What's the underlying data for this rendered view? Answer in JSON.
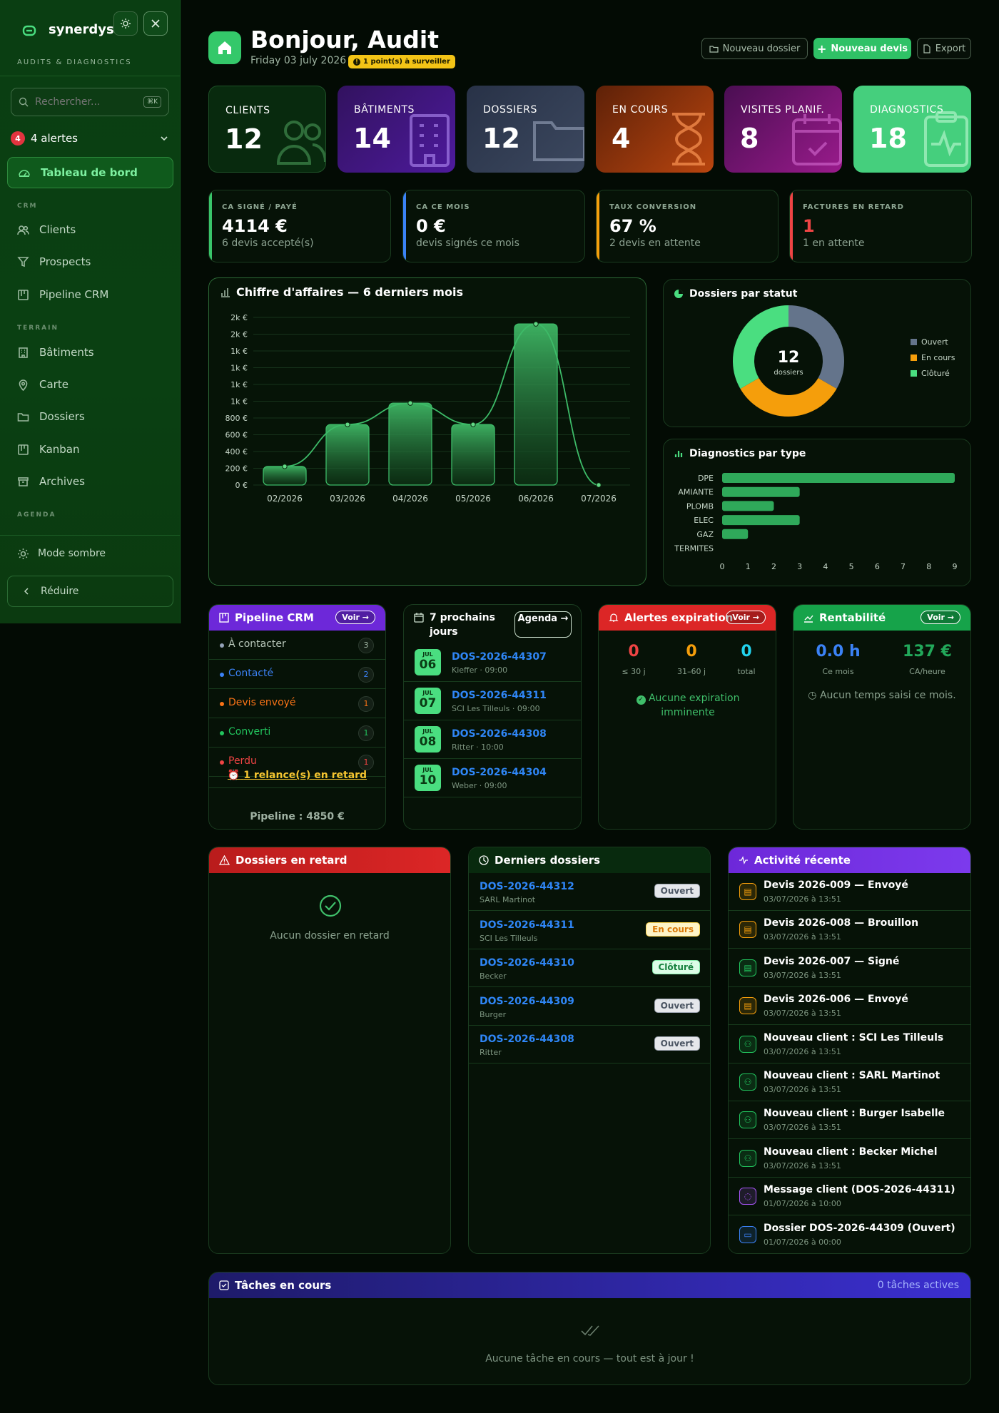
{
  "sidebar": {
    "brand": "synerdys",
    "tagline": "AUDITS & DIAGNOSTICS",
    "search_placeholder": "Rechercher...",
    "search_shortcut": "⌘K",
    "alerts_count": "4",
    "alerts_label": "4 alertes",
    "active_item": "Tableau de bord",
    "sections": {
      "crm": "CRM",
      "terrain": "TERRAIN",
      "agenda": "AGENDA"
    },
    "crm_items": [
      "Clients",
      "Prospects",
      "Pipeline CRM"
    ],
    "terrain_items": [
      "Bâtiments",
      "Carte",
      "Dossiers",
      "Kanban",
      "Archives"
    ],
    "dark_mode": "Mode sombre",
    "collapse": "Réduire"
  },
  "header": {
    "title": "Bonjour, Audit",
    "date": "Friday 03 july 2026",
    "warning": "1 point(s) à surveiller",
    "btn_new_folder": "Nouveau dossier",
    "btn_new_quote": "Nouveau devis",
    "btn_export": "Export"
  },
  "kpis": [
    {
      "label": "CLIENTS",
      "value": "12"
    },
    {
      "label": "BÂTIMENTS",
      "value": "14"
    },
    {
      "label": "DOSSIERS",
      "value": "12"
    },
    {
      "label": "EN COURS",
      "value": "4"
    },
    {
      "label": "VISITES PLANIF.",
      "value": "8"
    },
    {
      "label": "DIAGNOSTICS",
      "value": "18"
    }
  ],
  "stats": [
    {
      "label": "CA SIGNÉ / PAYÉ",
      "value": "4114 €",
      "sub": "6 devis accepté(s)",
      "color": "#39c46a"
    },
    {
      "label": "CA CE MOIS",
      "value": "0 €",
      "sub": "devis signés ce mois",
      "color": "#3b82f6"
    },
    {
      "label": "TAUX CONVERSION",
      "value": "67 %",
      "sub": "2 devis en attente",
      "color": "#f59e0b"
    },
    {
      "label": "FACTURES EN RETARD",
      "value": "1",
      "sub": "1 en attente",
      "color": "#ef4444"
    }
  ],
  "chart_data": [
    {
      "type": "bar",
      "title": "Chiffre d'affaires — 6 derniers mois",
      "categories": [
        "02/2026",
        "03/2026",
        "04/2026",
        "05/2026",
        "06/2026",
        "07/2026"
      ],
      "values": [
        200,
        650,
        880,
        650,
        1730,
        0
      ],
      "y_tick_labels": [
        "0 €",
        "200 €",
        "400 €",
        "600 €",
        "800 €",
        "1k €",
        "1k €",
        "1k €",
        "1k €",
        "2k €",
        "2k €"
      ],
      "ylim": [
        0,
        1800
      ],
      "line_overlay": true
    },
    {
      "type": "pie",
      "title": "Dossiers par statut",
      "center_value": "12",
      "center_label": "dossiers",
      "categories": [
        "Ouvert",
        "En cours",
        "Clôturé"
      ],
      "values": [
        4,
        4,
        4
      ],
      "colors": [
        "#64748b",
        "#f59e0b",
        "#4ade80"
      ]
    },
    {
      "type": "bar",
      "title": "Diagnostics par type",
      "orientation": "horizontal",
      "categories": [
        "DPE",
        "AMIANTE",
        "PLOMB",
        "ELEC",
        "GAZ",
        "TERMITES"
      ],
      "values": [
        9,
        3,
        2,
        3,
        1,
        0
      ],
      "x_ticks": [
        "0",
        "1",
        "2",
        "3",
        "4",
        "5",
        "6",
        "7",
        "8",
        "9"
      ],
      "xlim": [
        0,
        9
      ]
    }
  ],
  "pipeline": {
    "title": "Pipeline CRM",
    "voir": "Voir →",
    "stages": [
      {
        "label": "À contacter",
        "count": "3",
        "color": "#94a3b8"
      },
      {
        "label": "Contacté",
        "count": "2",
        "color": "#3b82f6"
      },
      {
        "label": "Devis envoyé",
        "count": "1",
        "color": "#f97316"
      },
      {
        "label": "Converti",
        "count": "1",
        "color": "#22c55e"
      },
      {
        "label": "Perdu",
        "count": "1",
        "color": "#ef4444"
      }
    ],
    "relance": "1 relance(s) en retard",
    "total": "Pipeline : 4850 €"
  },
  "upcoming": {
    "title": "7 prochains jours",
    "agenda_btn": "Agenda →",
    "items": [
      {
        "month": "JUL",
        "day": "06",
        "ref": "DOS-2026-44307",
        "info": "Kieffer · 09:00"
      },
      {
        "month": "JUL",
        "day": "07",
        "ref": "DOS-2026-44311",
        "info": "SCI Les Tilleuls · 09:00"
      },
      {
        "month": "JUL",
        "day": "08",
        "ref": "DOS-2026-44308",
        "info": "Ritter · 10:00"
      },
      {
        "month": "JUL",
        "day": "10",
        "ref": "DOS-2026-44304",
        "info": "Weber · 09:00"
      }
    ]
  },
  "expiry": {
    "title": "Alertes expiration",
    "voir": "Voir →",
    "cols": [
      {
        "value": "0",
        "label": "≤ 30 j",
        "color": "#ef4444"
      },
      {
        "value": "0",
        "label": "31–60 j",
        "color": "#f59e0b"
      },
      {
        "value": "0",
        "label": "total",
        "color": "#22d3ee"
      }
    ],
    "message": "Aucune expiration imminente"
  },
  "profit": {
    "title": "Rentabilité",
    "voir": "Voir →",
    "hours": "0.0 h",
    "hours_label": "Ce mois",
    "rate": "137 €",
    "rate_label": "CA/heure",
    "message": "Aucun temps saisi ce mois."
  },
  "late": {
    "title": "Dossiers en retard",
    "message": "Aucun dossier en retard"
  },
  "recent_folders": {
    "title": "Derniers dossiers",
    "items": [
      {
        "ref": "DOS-2026-44312",
        "client": "SARL Martinot",
        "status": "Ouvert",
        "kind": "open"
      },
      {
        "ref": "DOS-2026-44311",
        "client": "SCI Les Tilleuls",
        "status": "En cours",
        "kind": "progress"
      },
      {
        "ref": "DOS-2026-44310",
        "client": "Becker",
        "status": "Clôturé",
        "kind": "closed"
      },
      {
        "ref": "DOS-2026-44309",
        "client": "Burger",
        "status": "Ouvert",
        "kind": "open"
      },
      {
        "ref": "DOS-2026-44308",
        "client": "Ritter",
        "status": "Ouvert",
        "kind": "open"
      }
    ]
  },
  "activity": {
    "title": "Activité récente",
    "items": [
      {
        "text": "Devis 2026-009 — Envoyé",
        "date": "03/07/2026 à 13:51",
        "icon": "doc-icon",
        "color": "#f59e0b"
      },
      {
        "text": "Devis 2026-008 — Brouillon",
        "date": "03/07/2026 à 13:51",
        "icon": "doc-icon",
        "color": "#f59e0b"
      },
      {
        "text": "Devis 2026-007 — Signé",
        "date": "03/07/2026 à 13:51",
        "icon": "doc-icon",
        "color": "#22c55e"
      },
      {
        "text": "Devis 2026-006 — Envoyé",
        "date": "03/07/2026 à 13:51",
        "icon": "doc-icon",
        "color": "#f59e0b"
      },
      {
        "text": "Nouveau client : SCI Les Tilleuls",
        "date": "03/07/2026 à 13:51",
        "icon": "user-add-icon",
        "color": "#22c55e"
      },
      {
        "text": "Nouveau client : SARL Martinot",
        "date": "03/07/2026 à 13:51",
        "icon": "user-add-icon",
        "color": "#22c55e"
      },
      {
        "text": "Nouveau client : Burger Isabelle",
        "date": "03/07/2026 à 13:51",
        "icon": "user-add-icon",
        "color": "#22c55e"
      },
      {
        "text": "Nouveau client : Becker Michel",
        "date": "03/07/2026 à 13:51",
        "icon": "user-add-icon",
        "color": "#22c55e"
      },
      {
        "text": "Message client (DOS-2026-44311)",
        "date": "01/07/2026 à 10:00",
        "icon": "message-icon",
        "color": "#a855f7"
      },
      {
        "text": "Dossier DOS-2026-44309 (Ouvert)",
        "date": "01/07/2026 à 00:00",
        "icon": "folder-icon",
        "color": "#3b82f6"
      }
    ]
  },
  "tasks": {
    "title": "Tâches en cours",
    "count": "0 tâches actives",
    "message": "Aucune tâche en cours — tout est à jour !"
  }
}
